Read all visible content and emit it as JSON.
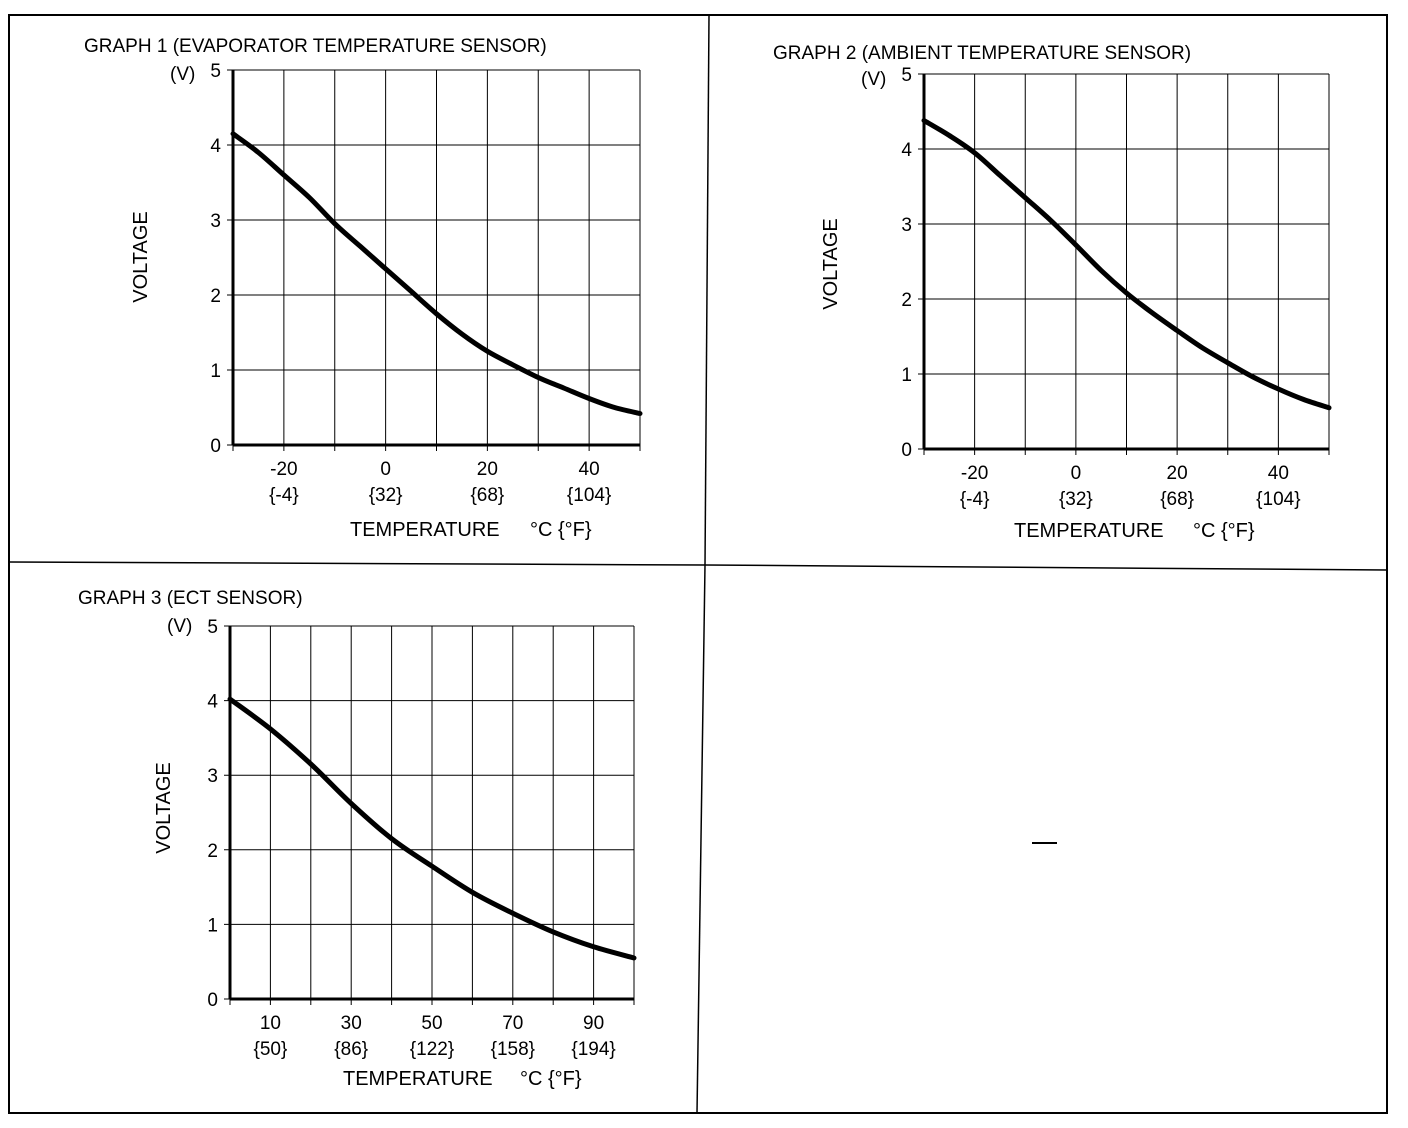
{
  "chart_data": [
    {
      "type": "line",
      "title": "GRAPH 1 (EVAPORATOR TEMPERATURE SENSOR)",
      "ylabel": "VOLTAGE",
      "yunit": "(V)",
      "xlabel": "TEMPERATURE",
      "xunit": "°C {°F}",
      "xlim": [
        -30,
        50
      ],
      "ylim": [
        0,
        5
      ],
      "x_gridlines": [
        -30,
        -20,
        -10,
        0,
        10,
        20,
        30,
        40,
        50
      ],
      "y_ticks": [
        "0",
        "1",
        "2",
        "3",
        "4",
        "5"
      ],
      "x_ticks": [
        {
          "value": -20,
          "label": "-20",
          "sublabel": "{-4}"
        },
        {
          "value": 0,
          "label": "0",
          "sublabel": "{32}"
        },
        {
          "value": 20,
          "label": "20",
          "sublabel": "{68}"
        },
        {
          "value": 40,
          "label": "40",
          "sublabel": "{104}"
        }
      ],
      "series": [
        {
          "name": "Evaporator temperature sensor",
          "x": [
            -30,
            -25,
            -20,
            -15,
            -10,
            -5,
            0,
            5,
            10,
            15,
            20,
            25,
            30,
            35,
            40,
            45,
            50
          ],
          "y": [
            4.15,
            3.9,
            3.6,
            3.3,
            2.95,
            2.65,
            2.35,
            2.05,
            1.75,
            1.48,
            1.25,
            1.07,
            0.9,
            0.76,
            0.62,
            0.5,
            0.42
          ]
        }
      ]
    },
    {
      "type": "line",
      "title": "GRAPH 2 (AMBIENT TEMPERATURE SENSOR)",
      "ylabel": "VOLTAGE",
      "yunit": "(V)",
      "xlabel": "TEMPERATURE",
      "xunit": "°C {°F}",
      "xlim": [
        -30,
        50
      ],
      "ylim": [
        0,
        5
      ],
      "x_gridlines": [
        -30,
        -20,
        -10,
        0,
        10,
        20,
        30,
        40,
        50
      ],
      "y_ticks": [
        "0",
        "1",
        "2",
        "3",
        "4",
        "5"
      ],
      "x_ticks": [
        {
          "value": -20,
          "label": "-20",
          "sublabel": "{-4}"
        },
        {
          "value": 0,
          "label": "0",
          "sublabel": "{32}"
        },
        {
          "value": 20,
          "label": "20",
          "sublabel": "{68}"
        },
        {
          "value": 40,
          "label": "40",
          "sublabel": "{104}"
        }
      ],
      "series": [
        {
          "name": "Ambient temperature sensor",
          "x": [
            -30,
            -25,
            -20,
            -15,
            -10,
            -5,
            0,
            5,
            10,
            15,
            20,
            25,
            30,
            35,
            40,
            45,
            50
          ],
          "y": [
            4.38,
            4.18,
            3.95,
            3.65,
            3.35,
            3.05,
            2.72,
            2.38,
            2.08,
            1.82,
            1.58,
            1.35,
            1.15,
            0.96,
            0.8,
            0.66,
            0.55
          ]
        }
      ]
    },
    {
      "type": "line",
      "title": "GRAPH 3 (ECT SENSOR)",
      "ylabel": "VOLTAGE",
      "yunit": "(V)",
      "xlabel": "TEMPERATURE",
      "xunit": "°C {°F}",
      "xlim": [
        0,
        100
      ],
      "ylim": [
        0,
        5
      ],
      "x_gridlines": [
        0,
        10,
        20,
        30,
        40,
        50,
        60,
        70,
        80,
        90,
        100
      ],
      "y_ticks": [
        "0",
        "1",
        "2",
        "3",
        "4",
        "5"
      ],
      "x_ticks": [
        {
          "value": 10,
          "label": "10",
          "sublabel": "{50}"
        },
        {
          "value": 30,
          "label": "30",
          "sublabel": "{86}"
        },
        {
          "value": 50,
          "label": "50",
          "sublabel": "{122}"
        },
        {
          "value": 70,
          "label": "70",
          "sublabel": "{158}"
        },
        {
          "value": 90,
          "label": "90",
          "sublabel": "{194}"
        }
      ],
      "series": [
        {
          "name": "ECT sensor",
          "x": [
            0,
            10,
            20,
            30,
            40,
            50,
            60,
            70,
            80,
            90,
            100
          ],
          "y": [
            4.02,
            3.62,
            3.15,
            2.62,
            2.15,
            1.78,
            1.43,
            1.15,
            0.9,
            0.7,
            0.55
          ]
        }
      ]
    }
  ]
}
